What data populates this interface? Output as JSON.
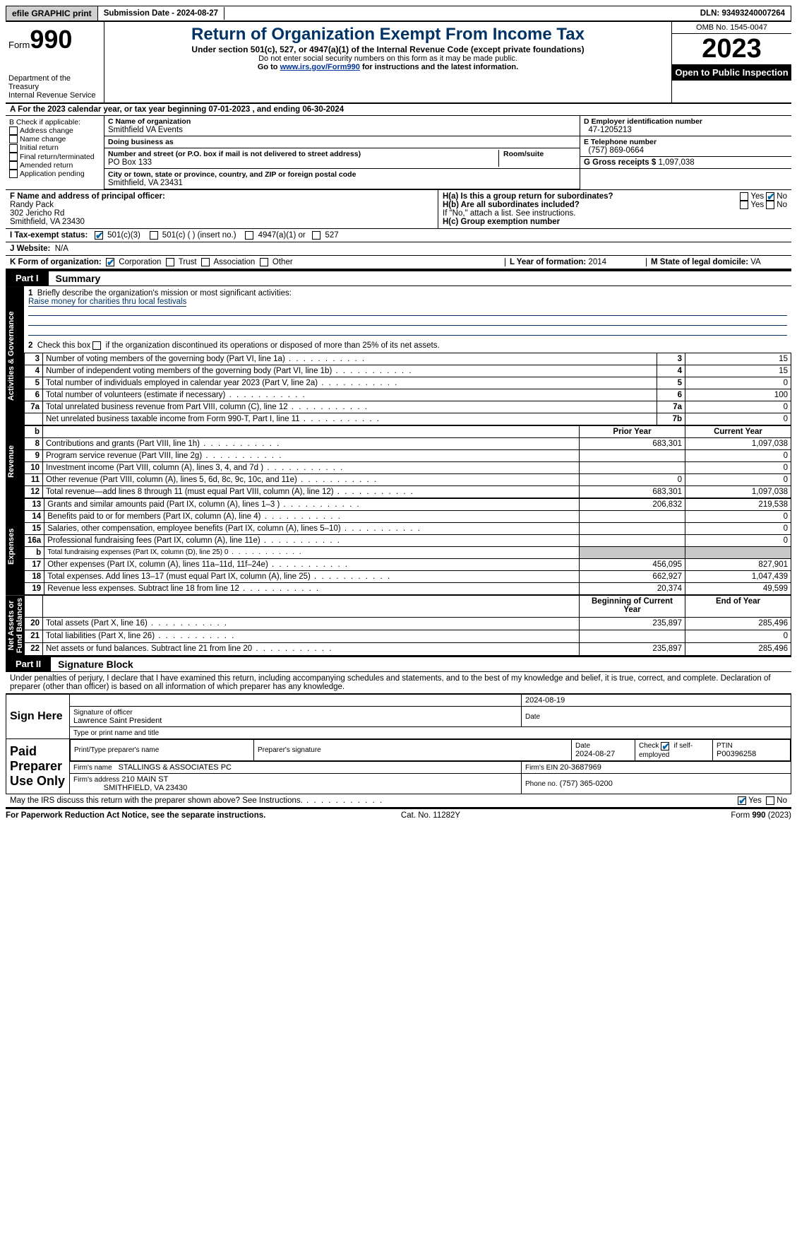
{
  "topbar": {
    "efile": "efile GRAPHIC print",
    "sub_label": "Submission Date - 2024-08-27",
    "dln": "DLN: 93493240007264"
  },
  "header": {
    "form_word": "Form",
    "form_num": "990",
    "dept": "Department of the Treasury\nInternal Revenue Service",
    "title": "Return of Organization Exempt From Income Tax",
    "sub": "Under section 501(c), 527, or 4947(a)(1) of the Internal Revenue Code (except private foundations)",
    "ssn": "Do not enter social security numbers on this form as it may be made public.",
    "goto_pre": "Go to ",
    "goto_link": "www.irs.gov/Form990",
    "goto_post": " for instructions and the latest information.",
    "omb": "OMB No. 1545-0047",
    "year": "2023",
    "open": "Open to Public Inspection"
  },
  "rowA": "A For the 2023 calendar year, or tax year beginning 07-01-2023    , and ending 06-30-2024",
  "boxB": {
    "title": "B Check if applicable:",
    "items": [
      "Address change",
      "Name change",
      "Initial return",
      "Final return/terminated",
      "Amended return",
      "Application pending"
    ]
  },
  "boxC": {
    "name_lbl": "C Name of organization",
    "name": "Smithfield VA Events",
    "dba_lbl": "Doing business as",
    "street_lbl": "Number and street (or P.O. box if mail is not delivered to street address)",
    "street": "PO Box 133",
    "room_lbl": "Room/suite",
    "city_lbl": "City or town, state or province, country, and ZIP or foreign postal code",
    "city": "Smithfield, VA  23431"
  },
  "boxD": {
    "lbl": "D Employer identification number",
    "val": "47-1205213"
  },
  "boxE": {
    "lbl": "E Telephone number",
    "val": "(757) 869-0664"
  },
  "boxG": {
    "lbl": "G Gross receipts $",
    "val": "1,097,038"
  },
  "boxF": {
    "lbl": "F  Name and address of principal officer:",
    "name": "Randy Pack",
    "addr1": "302 Jericho Rd",
    "addr2": "Smithfield, VA  23430"
  },
  "boxH": {
    "a": "H(a)  Is this a group return for subordinates?",
    "b": "H(b)  Are all subordinates included?",
    "b2": "If \"No,\" attach a list. See instructions.",
    "c": "H(c)  Group exemption number ",
    "yes": "Yes",
    "no": "No"
  },
  "rowI": {
    "lbl": "I    Tax-exempt status:",
    "o1": "501(c)(3)",
    "o2": "501(c) (  ) (insert no.)",
    "o3": "4947(a)(1) or",
    "o4": "527"
  },
  "rowJ": {
    "lbl": "J    Website: ",
    "val": "N/A"
  },
  "rowK": {
    "lbl": "K Form of organization:",
    "o1": "Corporation",
    "o2": "Trust",
    "o3": "Association",
    "o4": "Other"
  },
  "rowL": {
    "lbl": "L Year of formation:",
    "val": "2014"
  },
  "rowM": {
    "lbl": "M State of legal domicile:",
    "val": "VA"
  },
  "part1": {
    "tag": "Part I",
    "title": "Summary"
  },
  "summary": {
    "l1_lbl": "Briefly describe the organization's mission or most significant activities:",
    "l1_val": "Raise money for charities thru local festivals",
    "l2_pre": "Check this box ",
    "l2_post": " if the organization discontinued its operations or disposed of more than 25% of its net assets.",
    "rows": [
      {
        "n": "3",
        "t": "Number of voting members of the governing body (Part VI, line 1a)",
        "b": "3",
        "v": "15"
      },
      {
        "n": "4",
        "t": "Number of independent voting members of the governing body (Part VI, line 1b)",
        "b": "4",
        "v": "15"
      },
      {
        "n": "5",
        "t": "Total number of individuals employed in calendar year 2023 (Part V, line 2a)",
        "b": "5",
        "v": "0"
      },
      {
        "n": "6",
        "t": "Total number of volunteers (estimate if necessary)",
        "b": "6",
        "v": "100"
      },
      {
        "n": "7a",
        "t": "Total unrelated business revenue from Part VIII, column (C), line 12",
        "b": "7a",
        "v": "0"
      },
      {
        "n": "",
        "t": "Net unrelated business taxable income from Form 990-T, Part I, line 11",
        "b": "7b",
        "v": "0"
      }
    ],
    "hdr_b": "b",
    "hdr_p": "Prior Year",
    "hdr_c": "Current Year",
    "rev": [
      {
        "n": "8",
        "t": "Contributions and grants (Part VIII, line 1h)",
        "p": "683,301",
        "c": "1,097,038"
      },
      {
        "n": "9",
        "t": "Program service revenue (Part VIII, line 2g)",
        "p": "",
        "c": "0"
      },
      {
        "n": "10",
        "t": "Investment income (Part VIII, column (A), lines 3, 4, and 7d )",
        "p": "",
        "c": "0"
      },
      {
        "n": "11",
        "t": "Other revenue (Part VIII, column (A), lines 5, 6d, 8c, 9c, 10c, and 11e)",
        "p": "0",
        "c": "0"
      },
      {
        "n": "12",
        "t": "Total revenue—add lines 8 through 11 (must equal Part VIII, column (A), line 12)",
        "p": "683,301",
        "c": "1,097,038"
      }
    ],
    "exp": [
      {
        "n": "13",
        "t": "Grants and similar amounts paid (Part IX, column (A), lines 1–3 )",
        "p": "206,832",
        "c": "219,538"
      },
      {
        "n": "14",
        "t": "Benefits paid to or for members (Part IX, column (A), line 4)",
        "p": "",
        "c": "0"
      },
      {
        "n": "15",
        "t": "Salaries, other compensation, employee benefits (Part IX, column (A), lines 5–10)",
        "p": "",
        "c": "0"
      },
      {
        "n": "16a",
        "t": "Professional fundraising fees (Part IX, column (A), line 11e)",
        "p": "",
        "c": "0"
      },
      {
        "n": "b",
        "t": "Total fundraising expenses (Part IX, column (D), line 25) 0",
        "p": "",
        "c": "",
        "shade": true,
        "small": true
      },
      {
        "n": "17",
        "t": "Other expenses (Part IX, column (A), lines 11a–11d, 11f–24e)",
        "p": "456,095",
        "c": "827,901"
      },
      {
        "n": "18",
        "t": "Total expenses. Add lines 13–17 (must equal Part IX, column (A), line 25)",
        "p": "662,927",
        "c": "1,047,439"
      },
      {
        "n": "19",
        "t": "Revenue less expenses. Subtract line 18 from line 12",
        "p": "20,374",
        "c": "49,599"
      }
    ],
    "net_hdr_p": "Beginning of Current Year",
    "net_hdr_c": "End of Year",
    "net": [
      {
        "n": "20",
        "t": "Total assets (Part X, line 16)",
        "p": "235,897",
        "c": "285,496"
      },
      {
        "n": "21",
        "t": "Total liabilities (Part X, line 26)",
        "p": "",
        "c": "0"
      },
      {
        "n": "22",
        "t": "Net assets or fund balances. Subtract line 21 from line 20",
        "p": "235,897",
        "c": "285,496"
      }
    ]
  },
  "vtabs": {
    "ag": "Activities & Governance",
    "rev": "Revenue",
    "exp": "Expenses",
    "net": "Net Assets or\nFund Balances"
  },
  "part2": {
    "tag": "Part II",
    "title": "Signature Block"
  },
  "sig": {
    "decl": "Under penalties of perjury, I declare that I have examined this return, including accompanying schedules and statements, and to the best of my knowledge and belief, it is true, correct, and complete. Declaration of preparer (other than officer) is based on all information of which preparer has any knowledge.",
    "sign_here": "Sign Here",
    "sig_officer_lbl": "Signature of officer",
    "officer": "Lawrence Saint  President",
    "date_lbl": "Date",
    "date1": "2024-08-19",
    "type_lbl": "Type or print name and title",
    "paid": "Paid Preparer Use Only",
    "pname_lbl": "Print/Type preparer's name",
    "psig_lbl": "Preparer's signature",
    "pdate_lbl": "Date",
    "pdate": "2024-08-27",
    "pself_lbl": "Check",
    "pself_post": "if self-employed",
    "ptin_lbl": "PTIN",
    "ptin": "P00396258",
    "firm_lbl": "Firm's name ",
    "firm": "STALLINGS & ASSOCIATES PC",
    "fein_lbl": "Firm's EIN ",
    "fein": "20-3687969",
    "faddr_lbl": "Firm's address",
    "faddr1": "210 MAIN ST",
    "faddr2": "SMITHFIELD, VA  23430",
    "fphone_lbl": "Phone no.",
    "fphone": "(757) 365-0200",
    "discuss": "May the IRS discuss this return with the preparer shown above? See Instructions.",
    "yes": "Yes",
    "no": "No"
  },
  "footer": {
    "l": "For Paperwork Reduction Act Notice, see the separate instructions.",
    "c": "Cat. No. 11282Y",
    "r": "Form 990 (2023)"
  }
}
